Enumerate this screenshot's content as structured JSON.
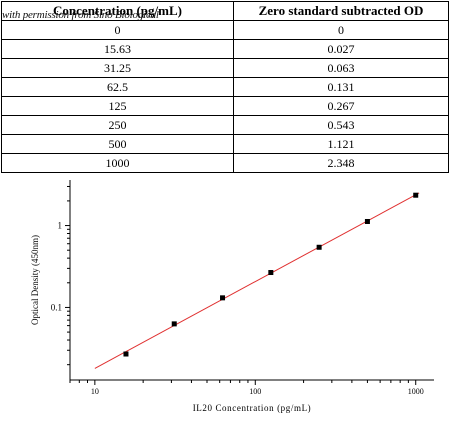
{
  "table": {
    "headers": [
      "Concentration (pg/mL)",
      "Zero standard subtracted OD"
    ],
    "watermark": "with permission from Sino Biological",
    "rows": [
      [
        "0",
        "0"
      ],
      [
        "15.63",
        "0.027"
      ],
      [
        "31.25",
        "0.063"
      ],
      [
        "62.5",
        "0.131"
      ],
      [
        "125",
        "0.267"
      ],
      [
        "250",
        "0.543"
      ],
      [
        "500",
        "1.121"
      ],
      [
        "1000",
        "2.348"
      ]
    ]
  },
  "chart_data": {
    "type": "scatter",
    "scale": "log-log",
    "xlabel": "IL20 Concentration (pg/mL)",
    "ylabel": "Optical Density (450nm)",
    "xlim": [
      7,
      1300
    ],
    "ylim": [
      0.013,
      3.6
    ],
    "x_ticks": [
      10,
      100,
      1000
    ],
    "y_ticks": [
      0.1,
      1
    ],
    "x": [
      15.63,
      31.25,
      62.5,
      125,
      250,
      500,
      1000
    ],
    "y": [
      0.027,
      0.063,
      0.131,
      0.267,
      0.543,
      1.121,
      2.348
    ],
    "fit_line": {
      "x_range": [
        10,
        1050
      ],
      "color": "#e03030"
    },
    "marker_color": "#000000",
    "grid": false
  }
}
